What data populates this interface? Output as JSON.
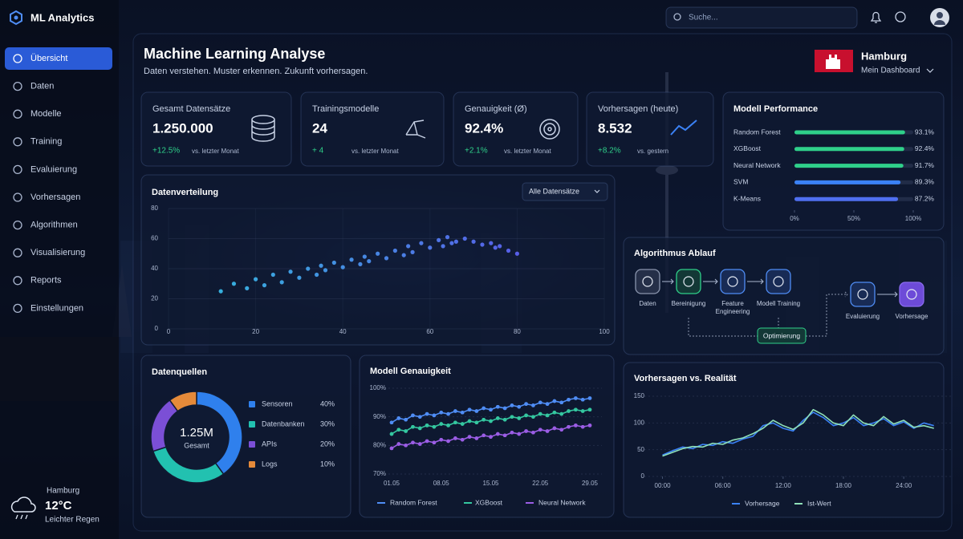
{
  "app": {
    "name": "ML Analytics"
  },
  "search": {
    "placeholder": "Suche..."
  },
  "nav": [
    "Übersicht",
    "Daten",
    "Modelle",
    "Training",
    "Evaluierung",
    "Vorhersagen",
    "Algorithmen",
    "Visualisierung",
    "Reports",
    "Einstellungen"
  ],
  "weather": {
    "city": "Hamburg",
    "temp": "12°C",
    "desc": "Leichter Regen"
  },
  "header": {
    "title": "Machine Learning Analyse",
    "subtitle": "Daten verstehen. Muster erkennen. Zukunft vorhersagen.",
    "city": "Hamburg",
    "dashboard": "Mein Dashboard"
  },
  "kpis": [
    {
      "label": "Gesamt Datensätze",
      "value": "1.250.000",
      "change": "+12.5%",
      "note": "vs. letzter Monat"
    },
    {
      "label": "Trainingsmodelle",
      "value": "24",
      "change": "+ 4",
      "note": "vs. letzter Monat"
    },
    {
      "label": "Genauigkeit (Ø)",
      "value": "92.4%",
      "change": "+2.1%",
      "note": "vs. letzter Monat"
    },
    {
      "label": "Vorhersagen (heute)",
      "value": "8.532",
      "change": "+8.2%",
      "note": "vs. gestern"
    }
  ],
  "performance": {
    "type": "bar",
    "title": "Modell Performance",
    "categories": [
      "Random Forest",
      "XGBoost",
      "Neural Network",
      "SVM",
      "K-Means"
    ],
    "values": [
      93.1,
      92.4,
      91.7,
      89.3,
      87.2
    ],
    "value_labels": [
      "93.1%",
      "92.4%",
      "91.7%",
      "89.3%",
      "87.2%"
    ],
    "colors": [
      "#2fd08a",
      "#2fd08a",
      "#2fd08a",
      "#3b82f6",
      "#4f6ff0"
    ],
    "xlim": [
      0,
      100
    ],
    "xticks": [
      {
        "value": 0,
        "label": "0%"
      },
      {
        "value": 50,
        "label": "50%"
      },
      {
        "value": 100,
        "label": "100%"
      }
    ]
  },
  "distribution": {
    "type": "scatter",
    "title": "Datenverteilung",
    "filter": "Alle Datensätze",
    "x": [
      12,
      15,
      18,
      20,
      22,
      24,
      26,
      28,
      30,
      32,
      34,
      35,
      36,
      38,
      40,
      42,
      44,
      45,
      46,
      48,
      50,
      52,
      54,
      55,
      56,
      58,
      60,
      62,
      63,
      64,
      65,
      66,
      68,
      70,
      72,
      74,
      75,
      76,
      78,
      80
    ],
    "y": [
      25,
      30,
      27,
      33,
      29,
      36,
      31,
      38,
      34,
      40,
      36,
      42,
      39,
      44,
      41,
      46,
      43,
      48,
      45,
      50,
      47,
      52,
      49,
      55,
      51,
      57,
      54,
      59,
      55,
      61,
      57,
      58,
      60,
      58,
      56,
      57,
      54,
      55,
      52,
      50
    ],
    "colors": [
      "#35d0ee",
      "#6a4cff"
    ],
    "xlim": [
      0,
      100
    ],
    "ylim": [
      0,
      80
    ],
    "xticks": [
      0,
      20,
      40,
      60,
      80,
      100
    ],
    "yticks": [
      0,
      20,
      40,
      60,
      80
    ],
    "grid": true
  },
  "workflow": {
    "title": "Algorithmus Ablauf",
    "nodes": [
      "Daten",
      "Bereinigung",
      "Feature Engineering",
      "Modell Training",
      "Evaluierung",
      "Vorhersage"
    ],
    "loop": "Optimierung"
  },
  "sources": {
    "type": "pie",
    "title": "Datenquellen",
    "center_value": "1.25M",
    "center_label": "Gesamt",
    "categories": [
      "Sensoren",
      "Datenbanken",
      "APIs",
      "Logs"
    ],
    "values": [
      40,
      30,
      20,
      10
    ],
    "value_labels": [
      "40%",
      "30%",
      "20%",
      "10%"
    ],
    "colors": [
      "#2f80ed",
      "#22c1b0",
      "#7b4fd6",
      "#e58a3a"
    ]
  },
  "accuracy": {
    "type": "line",
    "title": "Modell Genauigkeit",
    "categories": [
      "01.05",
      null,
      null,
      null,
      null,
      null,
      null,
      "08.05",
      null,
      null,
      null,
      null,
      null,
      null,
      "15.05",
      null,
      null,
      null,
      null,
      null,
      null,
      "22.05",
      null,
      null,
      null,
      null,
      null,
      null,
      "29.05"
    ],
    "series": [
      {
        "name": "Random Forest",
        "color": "#4f8df5",
        "values": [
          88,
          89.5,
          89,
          90.5,
          90,
          91,
          90.5,
          91.5,
          91,
          92,
          91.5,
          92.5,
          92,
          93,
          92.5,
          93.5,
          93,
          94,
          93.5,
          94.5,
          94,
          95,
          94.5,
          95.5,
          95,
          96,
          96.5,
          96,
          96.5
        ]
      },
      {
        "name": "XGBoost",
        "color": "#34c7a0",
        "values": [
          84,
          85.5,
          85,
          86.5,
          86,
          87,
          86.5,
          87.5,
          87,
          88,
          87.5,
          88.5,
          88,
          89,
          88.5,
          89.5,
          89,
          90,
          89.5,
          90.5,
          90,
          91,
          90.5,
          91.5,
          91,
          92,
          92.5,
          92,
          92.5
        ]
      },
      {
        "name": "Neural Network",
        "color": "#9b5de5",
        "values": [
          79,
          80.5,
          80,
          81,
          80.5,
          81.5,
          81,
          82,
          81.5,
          82.5,
          82,
          83,
          82.5,
          83.5,
          83,
          84,
          83.5,
          84.5,
          84,
          85,
          84.5,
          85.5,
          85,
          86,
          85.5,
          86.5,
          87,
          86.5,
          87
        ]
      }
    ],
    "ylim": [
      70,
      100
    ],
    "yticks": [
      {
        "value": 70,
        "label": "70%"
      },
      {
        "value": 80,
        "label": "80%"
      },
      {
        "value": 90,
        "label": "90%"
      },
      {
        "value": 100,
        "label": "100%"
      }
    ],
    "grid": true
  },
  "forecast": {
    "type": "line",
    "title": "Vorhersagen vs. Realität",
    "x": [
      0,
      1,
      2,
      3,
      4,
      5,
      6,
      7,
      8,
      9,
      10,
      11,
      12,
      13,
      14,
      15,
      16,
      17,
      18,
      19,
      20,
      21,
      22,
      23,
      24,
      25,
      26,
      27
    ],
    "series": [
      {
        "name": "Vorhersage",
        "color": "#3b82f6",
        "values": [
          40,
          48,
          55,
          52,
          60,
          58,
          65,
          62,
          70,
          75,
          95,
          100,
          90,
          85,
          105,
          120,
          110,
          95,
          100,
          110,
          95,
          100,
          108,
          95,
          102,
          90,
          100,
          95
        ]
      },
      {
        "name": "Ist-Wert",
        "color": "#8fe0b8",
        "values": [
          38,
          45,
          52,
          56,
          55,
          62,
          60,
          68,
          72,
          80,
          90,
          105,
          95,
          88,
          100,
          125,
          115,
          100,
          95,
          115,
          100,
          95,
          112,
          98,
          105,
          92,
          95,
          90
        ]
      }
    ],
    "xlim": [
      -1,
      27.5
    ],
    "ylim": [
      0,
      150
    ],
    "xticks": [
      {
        "value": 0,
        "label": "00:00"
      },
      {
        "value": 6,
        "label": "06:00"
      },
      {
        "value": 12,
        "label": "12:00"
      },
      {
        "value": 18,
        "label": "18:00"
      },
      {
        "value": 24,
        "label": "24:00"
      }
    ],
    "yticks": [
      0,
      50,
      100,
      150
    ],
    "grid": true
  }
}
